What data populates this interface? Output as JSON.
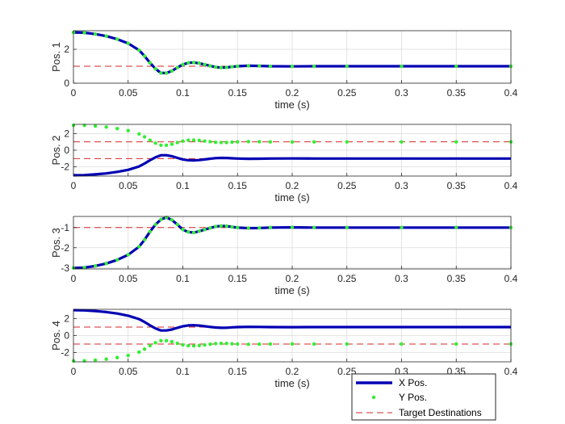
{
  "chart_data": {
    "type": "line",
    "legend": {
      "placement": "bottom-right",
      "entries": [
        "X Pos.",
        "Y Pos.",
        "Target Destinations"
      ]
    },
    "colors": {
      "x": "#0000b3",
      "y": "#33ee33",
      "target": "#d62728",
      "grid": "#dcdcdc",
      "axis": "#262626"
    },
    "x_ticks": [
      0,
      0.05,
      0.1,
      0.15,
      0.2,
      0.25,
      0.3,
      0.35,
      0.4
    ],
    "x_tick_labels": [
      "0",
      "0.05",
      "0.1",
      "0.15",
      "0.2",
      "0.25",
      "0.3",
      "0.35",
      "0.4"
    ],
    "charts": [
      {
        "ylabel": "Pos. 1",
        "xlabel": "time (s)",
        "xlim": [
          0,
          0.4
        ],
        "ylim": [
          0,
          3.1
        ],
        "yticks": [
          0,
          2
        ],
        "ytick_labels": [
          "0",
          "2"
        ],
        "targets": [
          1
        ],
        "series": [
          {
            "name": "X Pos.",
            "x": [
              0,
              0.01,
              0.02,
              0.03,
              0.04,
              0.05,
              0.06,
              0.065,
              0.07,
              0.075,
              0.08,
              0.085,
              0.09,
              0.095,
              0.1,
              0.105,
              0.11,
              0.115,
              0.12,
              0.125,
              0.13,
              0.135,
              0.14,
              0.145,
              0.15,
              0.16,
              0.17,
              0.18,
              0.2,
              0.22,
              0.25,
              0.3,
              0.35,
              0.4
            ],
            "values": [
              3,
              2.98,
              2.9,
              2.78,
              2.6,
              2.35,
              1.95,
              1.6,
              1.2,
              0.85,
              0.6,
              0.6,
              0.72,
              0.92,
              1.1,
              1.2,
              1.22,
              1.18,
              1.1,
              1.02,
              0.95,
              0.92,
              0.93,
              0.97,
              1.0,
              1.03,
              1.02,
              1.0,
              0.99,
              1.0,
              1.0,
              1.0,
              1.0,
              1.0
            ]
          },
          {
            "name": "Y Pos.",
            "x": [
              0,
              0.01,
              0.02,
              0.03,
              0.04,
              0.05,
              0.06,
              0.065,
              0.07,
              0.075,
              0.08,
              0.085,
              0.09,
              0.095,
              0.1,
              0.105,
              0.11,
              0.115,
              0.12,
              0.125,
              0.13,
              0.135,
              0.14,
              0.145,
              0.15,
              0.16,
              0.17,
              0.18,
              0.2,
              0.22,
              0.25,
              0.3,
              0.35,
              0.4
            ],
            "values": [
              3,
              2.98,
              2.9,
              2.78,
              2.6,
              2.35,
              1.95,
              1.6,
              1.2,
              0.85,
              0.6,
              0.6,
              0.72,
              0.92,
              1.1,
              1.2,
              1.22,
              1.18,
              1.1,
              1.02,
              0.95,
              0.92,
              0.93,
              0.97,
              1.0,
              1.03,
              1.02,
              1.0,
              0.99,
              1.0,
              1.0,
              1.0,
              1.0,
              1.0
            ]
          }
        ]
      },
      {
        "ylabel": "Pos. 2",
        "xlabel": "time (s)",
        "xlim": [
          0,
          0.4
        ],
        "ylim": [
          -3.1,
          3.1
        ],
        "yticks": [
          -2,
          0,
          2
        ],
        "ytick_labels": [
          "-2",
          "0",
          "2"
        ],
        "targets": [
          1,
          -1
        ],
        "series": [
          {
            "name": "X Pos.",
            "x": [
              0,
              0.01,
              0.02,
              0.03,
              0.04,
              0.05,
              0.06,
              0.065,
              0.07,
              0.075,
              0.08,
              0.085,
              0.09,
              0.095,
              0.1,
              0.105,
              0.11,
              0.115,
              0.12,
              0.125,
              0.13,
              0.135,
              0.14,
              0.145,
              0.15,
              0.16,
              0.17,
              0.18,
              0.2,
              0.22,
              0.25,
              0.3,
              0.35,
              0.4
            ],
            "values": [
              -3,
              -2.98,
              -2.9,
              -2.78,
              -2.6,
              -2.35,
              -1.95,
              -1.6,
              -1.2,
              -0.85,
              -0.6,
              -0.6,
              -0.72,
              -0.92,
              -1.1,
              -1.2,
              -1.22,
              -1.18,
              -1.1,
              -1.02,
              -0.95,
              -0.92,
              -0.93,
              -0.97,
              -1.0,
              -1.03,
              -1.02,
              -1.0,
              -0.99,
              -1.0,
              -1.0,
              -1.0,
              -1.0,
              -1.0
            ]
          },
          {
            "name": "Y Pos.",
            "x": [
              0,
              0.01,
              0.02,
              0.03,
              0.04,
              0.05,
              0.06,
              0.065,
              0.07,
              0.075,
              0.08,
              0.085,
              0.09,
              0.095,
              0.1,
              0.105,
              0.11,
              0.115,
              0.12,
              0.125,
              0.13,
              0.135,
              0.14,
              0.145,
              0.15,
              0.16,
              0.17,
              0.18,
              0.2,
              0.22,
              0.25,
              0.3,
              0.35,
              0.4
            ],
            "values": [
              3,
              2.98,
              2.9,
              2.78,
              2.6,
              2.35,
              1.95,
              1.6,
              1.2,
              0.85,
              0.6,
              0.6,
              0.72,
              0.92,
              1.1,
              1.2,
              1.22,
              1.18,
              1.1,
              1.02,
              0.95,
              0.92,
              0.93,
              0.97,
              1.0,
              1.03,
              1.02,
              1.0,
              0.99,
              1.0,
              1.0,
              1.0,
              1.0,
              1.0
            ]
          }
        ]
      },
      {
        "ylabel": "Pos. 3",
        "xlabel": "time (s)",
        "xlim": [
          0,
          0.4
        ],
        "ylim": [
          -3.05,
          -0.45
        ],
        "yticks": [
          -3,
          -2,
          -1
        ],
        "ytick_labels": [
          "-3",
          "-2",
          "-1"
        ],
        "targets": [
          -1
        ],
        "series": [
          {
            "name": "X Pos.",
            "x": [
              0,
              0.01,
              0.02,
              0.03,
              0.04,
              0.05,
              0.06,
              0.065,
              0.07,
              0.075,
              0.08,
              0.085,
              0.09,
              0.095,
              0.1,
              0.105,
              0.11,
              0.115,
              0.12,
              0.125,
              0.13,
              0.135,
              0.14,
              0.145,
              0.15,
              0.16,
              0.17,
              0.18,
              0.2,
              0.22,
              0.25,
              0.3,
              0.35,
              0.4
            ],
            "values": [
              -3,
              -2.98,
              -2.9,
              -2.78,
              -2.6,
              -2.35,
              -1.95,
              -1.6,
              -1.2,
              -0.85,
              -0.6,
              -0.5,
              -0.62,
              -0.85,
              -1.1,
              -1.22,
              -1.25,
              -1.18,
              -1.1,
              -1.02,
              -0.95,
              -0.92,
              -0.93,
              -0.97,
              -1.0,
              -1.03,
              -1.02,
              -1.0,
              -0.99,
              -1.0,
              -1.0,
              -1.0,
              -1.0,
              -1.0
            ]
          },
          {
            "name": "Y Pos.",
            "x": [
              0,
              0.01,
              0.02,
              0.03,
              0.04,
              0.05,
              0.06,
              0.065,
              0.07,
              0.075,
              0.08,
              0.085,
              0.09,
              0.095,
              0.1,
              0.105,
              0.11,
              0.115,
              0.12,
              0.125,
              0.13,
              0.135,
              0.14,
              0.145,
              0.15,
              0.16,
              0.17,
              0.18,
              0.2,
              0.22,
              0.25,
              0.3,
              0.35,
              0.4
            ],
            "values": [
              -3,
              -2.98,
              -2.9,
              -2.78,
              -2.6,
              -2.35,
              -1.95,
              -1.6,
              -1.2,
              -0.85,
              -0.6,
              -0.5,
              -0.62,
              -0.85,
              -1.1,
              -1.22,
              -1.25,
              -1.18,
              -1.1,
              -1.02,
              -0.95,
              -0.92,
              -0.93,
              -0.97,
              -1.0,
              -1.03,
              -1.02,
              -1.0,
              -0.99,
              -1.0,
              -1.0,
              -1.0,
              -1.0,
              -1.0
            ]
          }
        ]
      },
      {
        "ylabel": "Pos. 4",
        "xlabel": "time (s)",
        "xlim": [
          0,
          0.4
        ],
        "ylim": [
          -3.1,
          3.1
        ],
        "yticks": [
          -2,
          0,
          2
        ],
        "ytick_labels": [
          "-2",
          "0",
          "2"
        ],
        "targets": [
          1,
          -1
        ],
        "series": [
          {
            "name": "X Pos.",
            "x": [
              0,
              0.01,
              0.02,
              0.03,
              0.04,
              0.05,
              0.06,
              0.065,
              0.07,
              0.075,
              0.08,
              0.085,
              0.09,
              0.095,
              0.1,
              0.105,
              0.11,
              0.115,
              0.12,
              0.125,
              0.13,
              0.135,
              0.14,
              0.145,
              0.15,
              0.16,
              0.17,
              0.18,
              0.2,
              0.22,
              0.25,
              0.3,
              0.35,
              0.4
            ],
            "values": [
              3,
              2.98,
              2.9,
              2.78,
              2.6,
              2.35,
              1.95,
              1.6,
              1.2,
              0.85,
              0.6,
              0.6,
              0.72,
              0.92,
              1.1,
              1.2,
              1.22,
              1.18,
              1.1,
              1.02,
              0.95,
              0.92,
              0.93,
              0.97,
              1.0,
              1.03,
              1.02,
              1.0,
              0.99,
              1.0,
              1.0,
              1.0,
              1.0,
              1.0
            ]
          },
          {
            "name": "Y Pos.",
            "x": [
              0,
              0.01,
              0.02,
              0.03,
              0.04,
              0.05,
              0.06,
              0.065,
              0.07,
              0.075,
              0.08,
              0.085,
              0.09,
              0.095,
              0.1,
              0.105,
              0.11,
              0.115,
              0.12,
              0.125,
              0.13,
              0.135,
              0.14,
              0.145,
              0.15,
              0.16,
              0.17,
              0.18,
              0.2,
              0.22,
              0.25,
              0.3,
              0.35,
              0.4
            ],
            "values": [
              -3,
              -2.98,
              -2.9,
              -2.78,
              -2.6,
              -2.35,
              -1.95,
              -1.6,
              -1.2,
              -0.85,
              -0.6,
              -0.6,
              -0.72,
              -0.92,
              -1.1,
              -1.2,
              -1.22,
              -1.18,
              -1.1,
              -1.02,
              -0.95,
              -0.92,
              -0.93,
              -0.97,
              -1.0,
              -1.03,
              -1.02,
              -1.0,
              -0.99,
              -1.0,
              -1.0,
              -1.0,
              -1.0,
              -1.0
            ]
          }
        ]
      }
    ]
  }
}
